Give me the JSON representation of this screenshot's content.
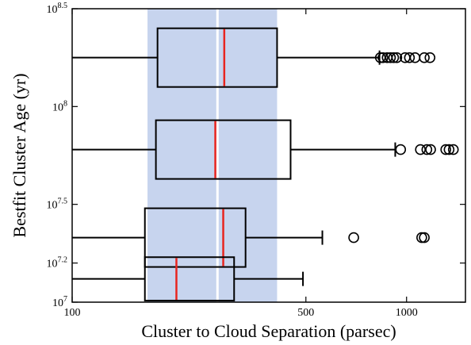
{
  "chart_data": {
    "type": "boxplot",
    "orientation": "horizontal",
    "xlabel": "Cluster to Cloud Separation (parsec)",
    "ylabel": "Bestfit Cluster Age (yr)",
    "x_scale": "log",
    "y_scale": "log",
    "xlim": [
      100,
      1500
    ],
    "x_ticks": [
      {
        "value": 100,
        "label": "100"
      },
      {
        "value": 500,
        "label": "500"
      },
      {
        "value": 1000,
        "label": "1000"
      }
    ],
    "ylim_log10": [
      7.0,
      8.5
    ],
    "y_ticks": [
      {
        "log10": 7.0,
        "base": "10",
        "exp": "7"
      },
      {
        "log10": 7.2,
        "base": "10",
        "exp": "7.2"
      },
      {
        "log10": 7.5,
        "base": "10",
        "exp": "7.5"
      },
      {
        "log10": 8.0,
        "base": "10",
        "exp": "8"
      },
      {
        "log10": 8.5,
        "base": "10",
        "exp": "8.5"
      }
    ],
    "shaded_band": {
      "x_from": 168,
      "x_to": 410,
      "color": "#c7d4ee"
    },
    "reference_line": {
      "x": 272,
      "color": "#ffffff"
    },
    "box_color": "#000000",
    "median_color": "#e8251f",
    "groups": [
      {
        "y_log10": 8.25,
        "whisker_low": 100,
        "q1": 180,
        "median": 285,
        "q3": 410,
        "whisker_high": 830,
        "outliers": [
          835,
          850,
          875,
          895,
          915,
          935,
          990,
          1020,
          1060,
          1130,
          1175
        ]
      },
      {
        "y_log10": 7.78,
        "whisker_low": 100,
        "q1": 178,
        "median": 268,
        "q3": 450,
        "whisker_high": 925,
        "outliers": [
          960,
          1100,
          1150,
          1180,
          1310,
          1340,
          1380
        ]
      },
      {
        "y_log10": 7.33,
        "whisker_low": 100,
        "q1": 165,
        "median": 283,
        "q3": 330,
        "whisker_high": 560,
        "outliers": [
          695,
          1110,
          1130
        ]
      },
      {
        "y_log10": 7.08,
        "whisker_low": 100,
        "q1": 165,
        "median": 205,
        "q3": 305,
        "whisker_high": 490,
        "outliers": []
      }
    ]
  }
}
